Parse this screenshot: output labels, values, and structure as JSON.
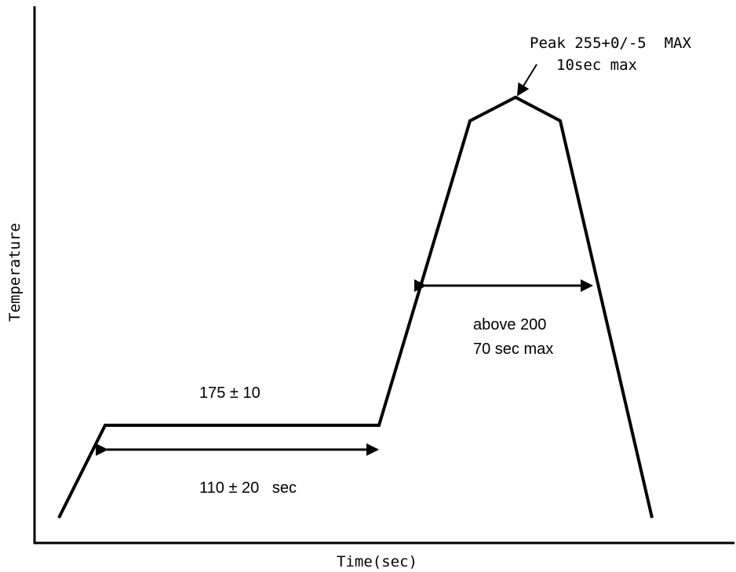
{
  "axes": {
    "x_label": "Time(sec)",
    "y_label": "Temperature"
  },
  "annotations": {
    "peak_line1": "Peak 255+0/-5  MAX",
    "peak_line2": "10sec max",
    "above_line1": "above 200",
    "above_line2": "70 sec max",
    "soak_temp": "175 ± 10",
    "soak_time": "110 ± 20   sec"
  },
  "colors": {
    "line": "#000000",
    "background": "#ffffff"
  }
}
